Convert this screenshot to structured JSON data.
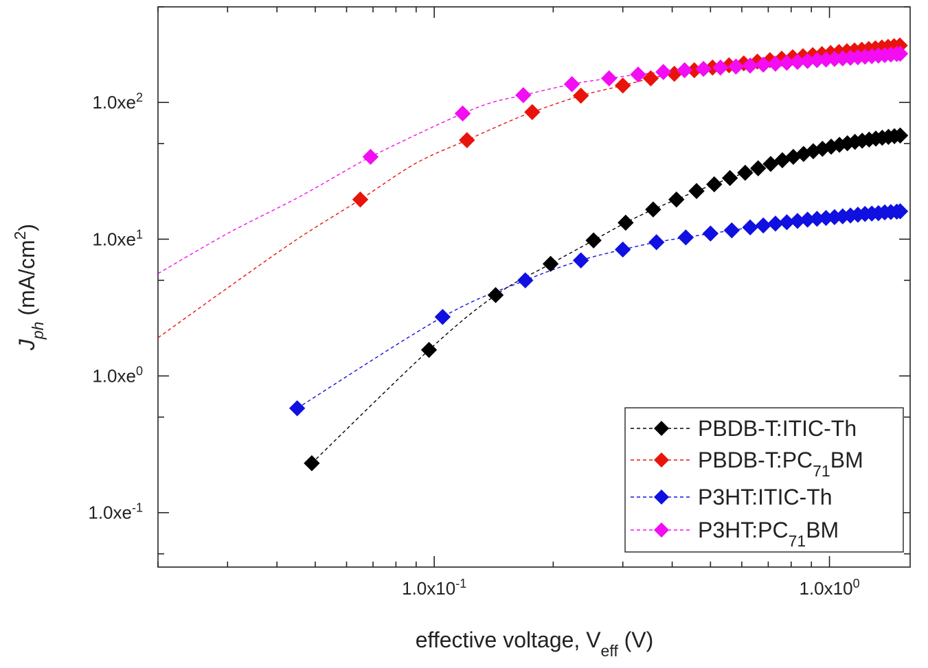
{
  "chart_data": {
    "type": "scatter",
    "title": "",
    "xscale": "log",
    "yscale": "log",
    "xlim": [
      0.02,
      1.6
    ],
    "ylim": [
      0.04,
      500
    ],
    "xlabel": {
      "base": "effective voltage, V",
      "sub": "eff",
      "tail": " (V)"
    },
    "ylabel": {
      "base": "J",
      "sub": "ph",
      "tail": " (mA/cm",
      "sup": "2",
      "end": ")"
    },
    "x_ticks": [
      {
        "value": 0.1,
        "mantissa": "1.0x10",
        "exp": "-1"
      },
      {
        "value": 1,
        "mantissa": "1.0x10",
        "exp": "0"
      }
    ],
    "y_ticks": [
      {
        "value": 0.1,
        "mantissa": "1.0xe",
        "exp": "-1"
      },
      {
        "value": 1,
        "mantissa": "1.0xe",
        "exp": "0"
      },
      {
        "value": 10,
        "mantissa": "1.0xe",
        "exp": "1"
      },
      {
        "value": 100,
        "mantissa": "1.0xe",
        "exp": "2"
      }
    ],
    "legend_position": "bottom-right",
    "series": [
      {
        "name": "PBDB-T:ITIC-Th",
        "label_parts": {
          "base": "PBDB-T:ITIC-Th",
          "sub": "",
          "tail": ""
        },
        "color": "#000000",
        "x": [
          0.049,
          0.097,
          0.143,
          0.197,
          0.253,
          0.305,
          0.358,
          0.41,
          0.461,
          0.511,
          0.56,
          0.612,
          0.66,
          0.71,
          0.76,
          0.81,
          0.86,
          0.91,
          0.96,
          1.01,
          1.06,
          1.11,
          1.16,
          1.21,
          1.26,
          1.31,
          1.36,
          1.41,
          1.46,
          1.51
        ],
        "values": [
          0.23,
          1.55,
          3.9,
          6.6,
          9.8,
          13.2,
          16.5,
          19.5,
          22.5,
          25.2,
          28,
          30.6,
          33,
          35.5,
          37.8,
          40,
          42,
          44,
          45.8,
          47.5,
          49,
          50.3,
          51.5,
          52.5,
          53.5,
          54.4,
          55.2,
          56,
          56.7,
          57.3
        ],
        "fit_line": {
          "x": [
            0.049,
            0.097,
            0.143,
            0.197,
            0.253,
            0.305,
            0.358,
            0.41,
            0.461,
            0.511,
            0.56,
            0.612,
            0.66,
            0.76,
            0.86,
            0.96,
            1.06,
            1.16,
            1.26,
            1.36,
            1.46,
            1.51
          ],
          "values": [
            0.23,
            1.55,
            3.9,
            6.6,
            9.8,
            13.2,
            16.5,
            19.5,
            22.5,
            25.2,
            28,
            30.6,
            33,
            37.8,
            42,
            45.8,
            49,
            51.5,
            53.5,
            55.2,
            56.7,
            57.3
          ]
        }
      },
      {
        "name": "PBDB-T:PC71BM",
        "label_parts": {
          "base": "PBDB-T:PC",
          "sub": "71",
          "tail": "BM"
        },
        "color": "#e8140c",
        "x": [
          0.065,
          0.121,
          0.177,
          0.235,
          0.3,
          0.353,
          0.405,
          0.455,
          0.506,
          0.557,
          0.607,
          0.657,
          0.707,
          0.757,
          0.807,
          0.857,
          0.907,
          0.957,
          1.007,
          1.057,
          1.107,
          1.157,
          1.207,
          1.257,
          1.307,
          1.357,
          1.407,
          1.457,
          1.507
        ],
        "values": [
          19.5,
          53,
          85,
          112,
          133,
          150,
          162,
          172,
          180,
          187,
          193,
          199,
          204,
          209,
          214,
          218,
          222,
          226,
          230,
          234,
          237,
          240,
          243,
          246,
          249,
          252,
          255,
          258,
          261
        ],
        "fit_line": {
          "x": [
            0.02,
            0.03,
            0.045,
            0.065,
            0.09,
            0.121,
            0.15,
            0.177,
            0.235,
            0.3,
            0.353,
            0.405,
            0.455,
            0.506,
            0.557,
            0.607,
            0.707,
            0.807,
            0.907,
            1.007,
            1.107,
            1.207,
            1.307,
            1.407,
            1.507
          ],
          "values": [
            1.9,
            4.4,
            10,
            19.5,
            36,
            53,
            70,
            85,
            112,
            133,
            150,
            162,
            172,
            180,
            187,
            193,
            204,
            214,
            222,
            230,
            237,
            243,
            249,
            255,
            261
          ]
        }
      },
      {
        "name": "P3HT:ITIC-Th",
        "label_parts": {
          "base": "P3HT:ITIC-Th",
          "sub": "",
          "tail": ""
        },
        "color": "#1010e0",
        "x": [
          0.045,
          0.105,
          0.17,
          0.235,
          0.3,
          0.365,
          0.433,
          0.5,
          0.566,
          0.63,
          0.68,
          0.73,
          0.78,
          0.83,
          0.88,
          0.93,
          0.98,
          1.03,
          1.08,
          1.13,
          1.18,
          1.23,
          1.28,
          1.33,
          1.38,
          1.43,
          1.48,
          1.51
        ],
        "values": [
          0.58,
          2.7,
          5.0,
          7.0,
          8.4,
          9.5,
          10.3,
          11.0,
          11.6,
          12.2,
          12.6,
          13.0,
          13.3,
          13.6,
          13.9,
          14.1,
          14.3,
          14.5,
          14.7,
          14.9,
          15.1,
          15.3,
          15.4,
          15.5,
          15.7,
          15.8,
          15.9,
          16.0
        ],
        "fit_line": {
          "x": [
            0.045,
            0.105,
            0.17,
            0.235,
            0.3,
            0.365,
            0.433,
            0.5,
            0.566,
            0.63,
            0.73,
            0.83,
            0.93,
            1.03,
            1.13,
            1.23,
            1.33,
            1.43,
            1.51
          ],
          "values": [
            0.58,
            2.7,
            5.0,
            7.0,
            8.4,
            9.5,
            10.3,
            11.0,
            11.6,
            12.2,
            13.0,
            13.6,
            14.1,
            14.5,
            14.9,
            15.3,
            15.5,
            15.8,
            16.0
          ]
        }
      },
      {
        "name": "P3HT:PC71BM",
        "label_parts": {
          "base": "P3HT:PC",
          "sub": "71",
          "tail": "BM"
        },
        "color": "#f20df2",
        "x": [
          0.069,
          0.118,
          0.168,
          0.223,
          0.277,
          0.328,
          0.38,
          0.43,
          0.48,
          0.53,
          0.58,
          0.63,
          0.68,
          0.73,
          0.78,
          0.83,
          0.88,
          0.93,
          0.98,
          1.03,
          1.08,
          1.13,
          1.18,
          1.23,
          1.28,
          1.33,
          1.38,
          1.43,
          1.48,
          1.51
        ],
        "values": [
          40,
          83,
          113,
          136,
          150,
          160,
          167,
          172,
          176,
          180,
          183,
          186,
          189,
          192,
          195,
          198,
          201,
          204,
          206,
          208,
          210,
          212,
          214,
          216,
          218,
          220,
          222,
          224,
          226,
          227
        ],
        "fit_line": {
          "x": [
            0.02,
            0.03,
            0.045,
            0.06,
            0.069,
            0.09,
            0.118,
            0.14,
            0.168,
            0.223,
            0.277,
            0.328,
            0.38,
            0.43,
            0.48,
            0.53,
            0.63,
            0.73,
            0.83,
            0.93,
            1.03,
            1.13,
            1.23,
            1.33,
            1.43,
            1.51
          ],
          "values": [
            5.6,
            11,
            20,
            32,
            40,
            58,
            83,
            100,
            113,
            136,
            150,
            160,
            167,
            172,
            176,
            180,
            186,
            192,
            198,
            204,
            208,
            212,
            216,
            220,
            224,
            227
          ]
        }
      }
    ]
  }
}
